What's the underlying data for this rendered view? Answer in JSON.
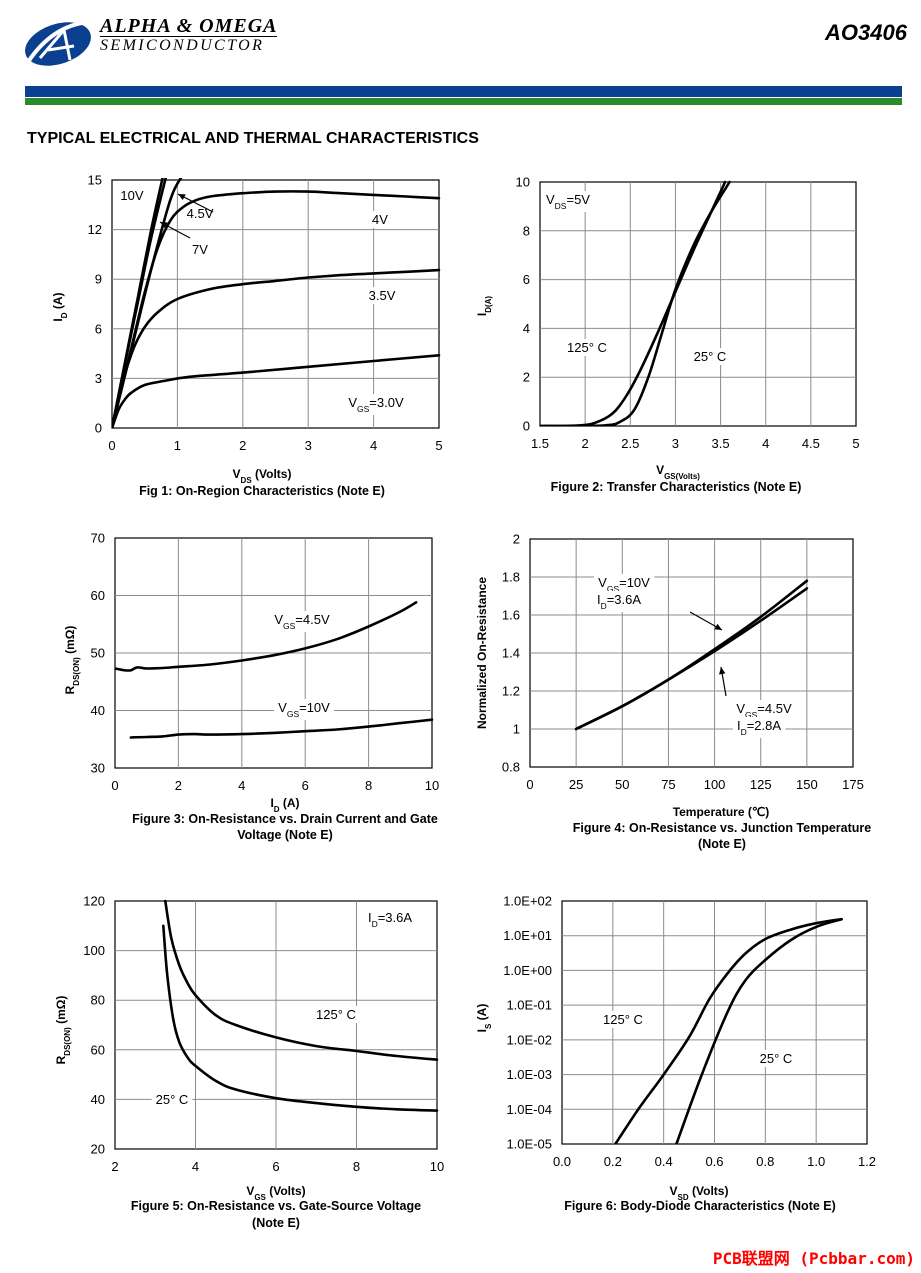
{
  "header": {
    "company_line1": "ALPHA & OMEGA",
    "company_line2": "SEMICONDUCTOR",
    "part_number": "AO3406",
    "colors": {
      "blue": "#0b3f8f",
      "green": "#2b8a2b",
      "text": "#000000",
      "watermark": "#ff0000"
    }
  },
  "section_title": "TYPICAL ELECTRICAL AND THERMAL CHARACTERISTICS",
  "watermark": "PCB联盟网 (Pcbbar.com)",
  "chart_data": [
    {
      "type": "line",
      "title": "Fig 1: On-Region Characteristics (Note E)",
      "xlabel": "V_DS (Volts)",
      "ylabel": "I_D (A)",
      "xlim": [
        0,
        5
      ],
      "ylim": [
        0,
        15
      ],
      "xticks": [
        "0",
        "1",
        "2",
        "3",
        "4",
        "5"
      ],
      "yticks": [
        "0",
        "3",
        "6",
        "9",
        "12",
        "15"
      ],
      "series": [
        {
          "name": "10V",
          "x": [
            0,
            0.2,
            0.4,
            0.6,
            0.8
          ],
          "y": [
            0,
            4,
            8,
            12,
            15.6
          ]
        },
        {
          "name": "7V",
          "x": [
            0,
            0.2,
            0.4,
            0.6,
            0.85
          ],
          "y": [
            0,
            3.9,
            7.7,
            11.5,
            15.6
          ]
        },
        {
          "name": "4.5V",
          "x": [
            0,
            0.3,
            0.6,
            0.9,
            1.1
          ],
          "y": [
            0,
            4.8,
            9.6,
            13.9,
            15.4
          ]
        },
        {
          "name": "4V",
          "x": [
            0,
            0.15,
            0.3,
            0.5,
            0.7,
            0.9,
            1.1,
            1.3,
            1.5,
            1.7,
            2.0,
            2.5,
            3.0,
            3.5,
            4.0,
            4.5,
            5.0
          ],
          "y": [
            0,
            2.5,
            4.9,
            8.2,
            10.9,
            12.6,
            13.4,
            13.8,
            14.0,
            14.1,
            14.2,
            14.3,
            14.3,
            14.2,
            14.1,
            14.0,
            13.9
          ]
        },
        {
          "name": "3.5V",
          "x": [
            0,
            0.1,
            0.2,
            0.35,
            0.5,
            0.7,
            1.0,
            1.5,
            2.0,
            2.5,
            3.0,
            3.5,
            4.0,
            4.5,
            5.0
          ],
          "y": [
            0,
            1.8,
            3.3,
            5.0,
            6.1,
            7.0,
            7.8,
            8.4,
            8.7,
            8.9,
            9.1,
            9.25,
            9.35,
            9.45,
            9.55
          ]
        },
        {
          "name": "3.0V",
          "x": [
            0,
            0.1,
            0.2,
            0.3,
            0.5,
            0.8,
            1.2,
            2.0,
            3.0,
            4.0,
            5.0
          ],
          "y": [
            0,
            1.1,
            1.75,
            2.15,
            2.6,
            2.85,
            3.1,
            3.35,
            3.7,
            4.05,
            4.4
          ]
        }
      ],
      "annotations": [
        "10V",
        "4.5V",
        "4V",
        "7V",
        "3.5V",
        "V_GS=3.0V"
      ]
    },
    {
      "type": "line",
      "title": "Figure 2: Transfer Characteristics (Note E)",
      "xlabel": "V_GS(Volts)",
      "ylabel": "I_D(A)",
      "xlim": [
        1.5,
        5
      ],
      "ylim": [
        0,
        10
      ],
      "xticks": [
        "1.5",
        "2",
        "2.5",
        "3",
        "3.5",
        "4",
        "4.5",
        "5"
      ],
      "yticks": [
        "0",
        "2",
        "4",
        "6",
        "8",
        "10"
      ],
      "series": [
        {
          "name": "125°C",
          "x": [
            1.5,
            1.9,
            2.1,
            2.3,
            2.45,
            2.6,
            2.8,
            3.0,
            3.2,
            3.4,
            3.55
          ],
          "y": [
            0,
            0.02,
            0.12,
            0.5,
            1.2,
            2.2,
            3.8,
            5.5,
            7.2,
            8.8,
            10
          ]
        },
        {
          "name": "25°C",
          "x": [
            1.5,
            2.2,
            2.4,
            2.55,
            2.7,
            2.85,
            3.0,
            3.2,
            3.4,
            3.6
          ],
          "y": [
            0,
            0.02,
            0.2,
            0.7,
            2.0,
            3.8,
            5.6,
            7.4,
            8.8,
            10
          ]
        }
      ],
      "annotations": [
        "V_DS=5V",
        "125° C",
        "25° C"
      ]
    },
    {
      "type": "line",
      "title": "Figure 3: On-Resistance vs. Drain Current and Gate Voltage (Note E)",
      "title_lines": [
        "Figure 3: On-Resistance vs. Drain Current and Gate",
        "Voltage (Note E)"
      ],
      "xlabel": "I_D (A)",
      "ylabel": "R_DS(ON) (mΩ)",
      "xlim": [
        0,
        10
      ],
      "ylim": [
        30,
        70
      ],
      "xticks": [
        "0",
        "2",
        "4",
        "6",
        "8",
        "10"
      ],
      "yticks": [
        "30",
        "40",
        "50",
        "60",
        "70"
      ],
      "series": [
        {
          "name": "V_GS=4.5V",
          "x": [
            0,
            0.3,
            0.5,
            0.7,
            1.0,
            1.5,
            2.0,
            3.0,
            4.0,
            5.0,
            6.0,
            7.0,
            8.0,
            9.0,
            9.5
          ],
          "y": [
            47.3,
            47.0,
            47.0,
            47.5,
            47.3,
            47.4,
            47.6,
            48.0,
            48.7,
            49.6,
            50.8,
            52.4,
            54.6,
            57.2,
            58.8
          ]
        },
        {
          "name": "V_GS=10V",
          "x": [
            0.5,
            1.0,
            1.5,
            2.0,
            2.5,
            3.0,
            4.0,
            5.0,
            6.0,
            7.0,
            8.0,
            9.0,
            10.0
          ],
          "y": [
            35.3,
            35.4,
            35.5,
            35.8,
            35.9,
            35.8,
            35.9,
            36.1,
            36.4,
            36.7,
            37.2,
            37.8,
            38.4
          ]
        }
      ],
      "annotations": [
        "V_GS=4.5V",
        "V_GS=10V"
      ]
    },
    {
      "type": "line",
      "title": "Figure 4: On-Resistance vs. Junction Temperature (Note E)",
      "title_lines": [
        "Figure 4: On-Resistance vs. Junction Temperature",
        "(Note E)"
      ],
      "xlabel": "Temperature (℃)",
      "ylabel": "Normalized On-Resistance",
      "xlim": [
        0,
        175
      ],
      "ylim": [
        0.8,
        2
      ],
      "xticks": [
        "0",
        "25",
        "50",
        "75",
        "100",
        "125",
        "150",
        "175"
      ],
      "yticks": [
        "0.8",
        "1",
        "1.2",
        "1.4",
        "1.6",
        "1.8",
        "2"
      ],
      "series": [
        {
          "name": "V_GS=10V, I_D=3.6A",
          "x": [
            25,
            50,
            75,
            100,
            125,
            150
          ],
          "y": [
            1.0,
            1.12,
            1.26,
            1.42,
            1.59,
            1.78
          ]
        },
        {
          "name": "V_GS=4.5V, I_D=2.8A",
          "x": [
            25,
            50,
            75,
            100,
            125,
            150
          ],
          "y": [
            1.0,
            1.12,
            1.26,
            1.41,
            1.57,
            1.74
          ]
        }
      ],
      "annotations": [
        "V_GS=10V",
        "I_D=3.6A",
        "V_GS=4.5V",
        "I_D=2.8A"
      ]
    },
    {
      "type": "line",
      "title": "Figure 5: On-Resistance vs. Gate-Source Voltage (Note E)",
      "title_lines": [
        "Figure 5: On-Resistance vs. Gate-Source Voltage",
        "(Note E)"
      ],
      "xlabel": "V_GS (Volts)",
      "ylabel": "R_DS(ON) (mΩ)",
      "xlim": [
        2,
        10
      ],
      "ylim": [
        20,
        120
      ],
      "xticks": [
        "2",
        "4",
        "6",
        "8",
        "10"
      ],
      "yticks": [
        "20",
        "40",
        "60",
        "80",
        "100",
        "120"
      ],
      "series": [
        {
          "name": "125°C",
          "x": [
            3.25,
            3.4,
            3.6,
            3.8,
            4.0,
            4.5,
            5.0,
            6.0,
            7.0,
            8.0,
            9.0,
            10.0
          ],
          "y": [
            120,
            105,
            94,
            87,
            82,
            74,
            70,
            65,
            61.5,
            59.5,
            57.5,
            56
          ]
        },
        {
          "name": "25°C",
          "x": [
            3.2,
            3.3,
            3.45,
            3.6,
            3.8,
            4.0,
            4.5,
            5.0,
            6.0,
            7.0,
            8.0,
            9.0,
            10.0
          ],
          "y": [
            110,
            90,
            72,
            63,
            57,
            53.5,
            47.5,
            44,
            40.5,
            38.5,
            37,
            36,
            35.5
          ]
        }
      ],
      "annotations": [
        "I_D=3.6A",
        "125° C",
        "25° C"
      ]
    },
    {
      "type": "line",
      "title": "Figure 6: Body-Diode Characteristics (Note E)",
      "xlabel": "V_SD (Volts)",
      "ylabel": "I_S (A)",
      "xlim": [
        0,
        1.2
      ],
      "ylim": [
        1e-05,
        100
      ],
      "yscale": "log",
      "xticks": [
        "0.0",
        "0.2",
        "0.4",
        "0.6",
        "0.8",
        "1.0",
        "1.2"
      ],
      "yticks": [
        "1.0E-05",
        "1.0E-04",
        "1.0E-03",
        "1.0E-02",
        "1.0E-01",
        "1.0E+00",
        "1.0E+01",
        "1.0E+02"
      ],
      "series": [
        {
          "name": "125°C",
          "x": [
            0.21,
            0.3,
            0.4,
            0.5,
            0.58,
            0.65,
            0.72,
            0.8,
            0.9,
            1.0,
            1.1
          ],
          "y": [
            1e-05,
            0.0001,
            0.001,
            0.012,
            0.15,
            0.8,
            3,
            8,
            15,
            23,
            30
          ]
        },
        {
          "name": "25°C",
          "x": [
            0.45,
            0.55,
            0.65,
            0.72,
            0.8,
            0.9,
            1.0,
            1.1
          ],
          "y": [
            1e-05,
            0.001,
            0.06,
            0.5,
            2,
            7.5,
            18,
            30
          ]
        }
      ],
      "annotations": [
        "125° C",
        "25° C"
      ]
    }
  ]
}
